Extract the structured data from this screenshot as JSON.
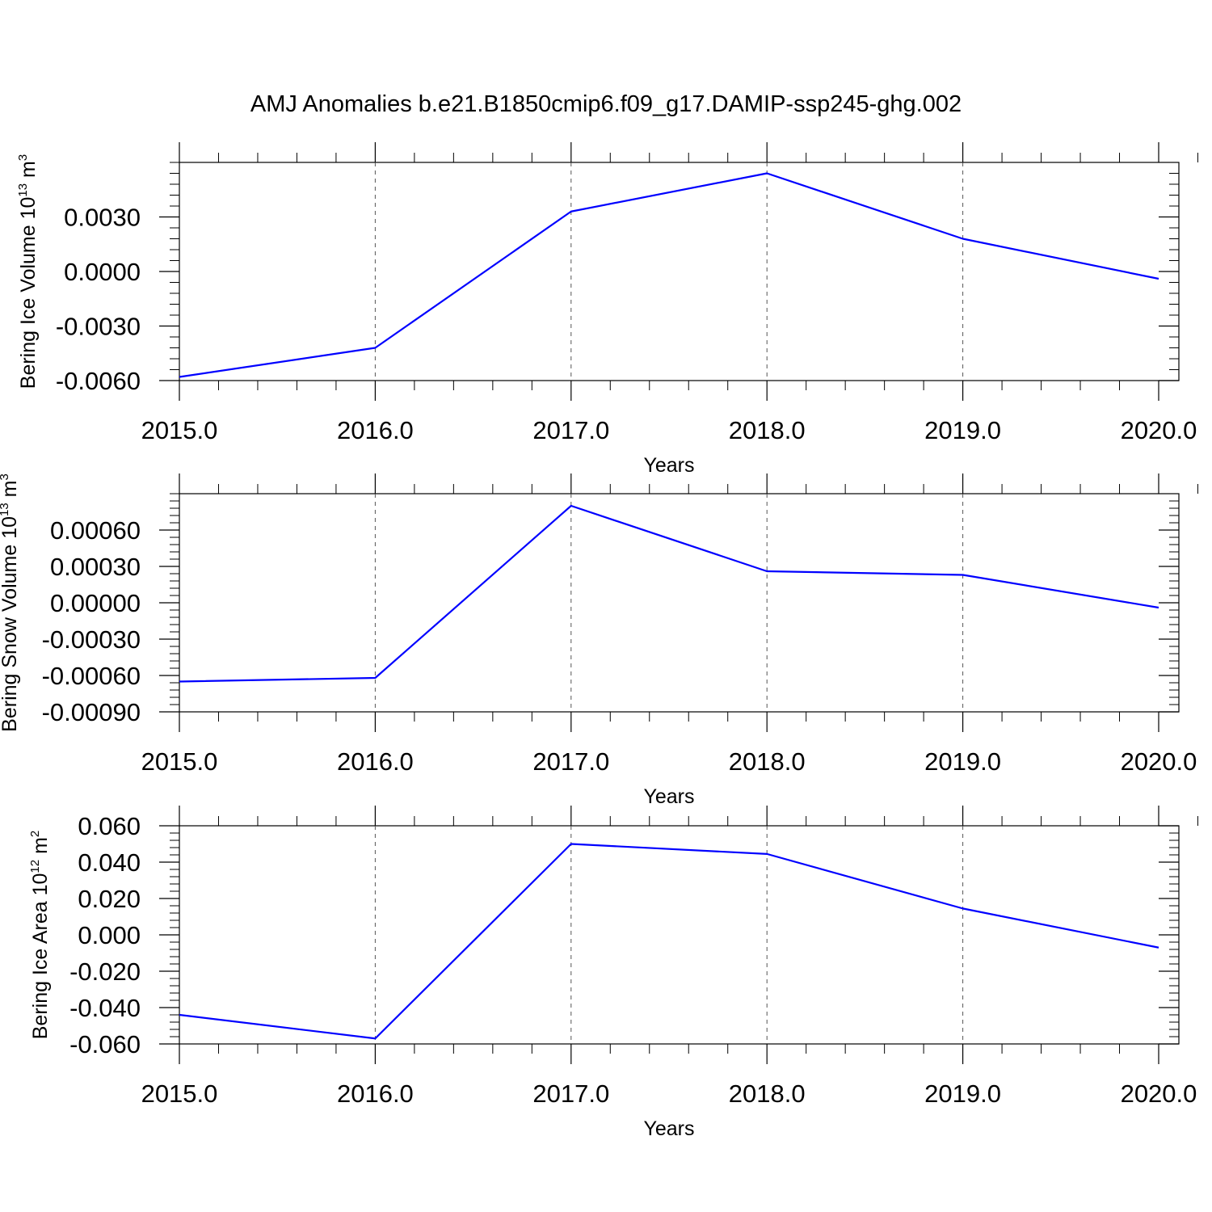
{
  "title": "AMJ Anomalies b.e21.B1850cmip6.f09_g17.DAMIP-ssp245-ghg.002",
  "colors": {
    "line": "#0000ff",
    "axis": "#000000",
    "grid": "#555555",
    "background": "#ffffff"
  },
  "chart_data": [
    {
      "type": "line",
      "xlabel": "Years",
      "ylabel": {
        "text": "Bering Ice Volume 10",
        "sup": "13",
        "unit": " m",
        "unit_sup": "3"
      },
      "x": [
        2015,
        2016,
        2017,
        2018,
        2019,
        2020
      ],
      "xticks": [
        "2015.0",
        "2016.0",
        "2017.0",
        "2018.0",
        "2019.0",
        "2020.0"
      ],
      "xlim": [
        2015,
        2020.1
      ],
      "yticks": [
        {
          "value": 0.003,
          "label": "0.0030"
        },
        {
          "value": 0.0,
          "label": "0.0000"
        },
        {
          "value": -0.003,
          "label": "-0.0030"
        },
        {
          "value": -0.006,
          "label": "-0.0060"
        }
      ],
      "ylim": [
        -0.006,
        0.006
      ],
      "grid": "vertical dashed at major x ticks",
      "series": [
        {
          "values": [
            -0.0058,
            -0.0042,
            0.0033,
            0.0054,
            0.0018,
            -0.0004
          ]
        }
      ]
    },
    {
      "type": "line",
      "xlabel": "Years",
      "ylabel": {
        "text": "Bering Snow Volume 10",
        "sup": "13",
        "unit": " m",
        "unit_sup": "3"
      },
      "x": [
        2015,
        2016,
        2017,
        2018,
        2019,
        2020
      ],
      "xticks": [
        "2015.0",
        "2016.0",
        "2017.0",
        "2018.0",
        "2019.0",
        "2020.0"
      ],
      "xlim": [
        2015,
        2020.1
      ],
      "yticks": [
        {
          "value": 0.0006,
          "label": "0.00060"
        },
        {
          "value": 0.0003,
          "label": "0.00030"
        },
        {
          "value": 0.0,
          "label": "0.00000"
        },
        {
          "value": -0.0003,
          "label": "-0.00030"
        },
        {
          "value": -0.0006,
          "label": "-0.00060"
        },
        {
          "value": -0.0009,
          "label": "-0.00090"
        }
      ],
      "ylim": [
        -0.0009,
        0.0009
      ],
      "grid": "vertical dashed at major x ticks",
      "series": [
        {
          "values": [
            -0.00065,
            -0.00062,
            0.0008,
            0.00026,
            0.00023,
            -4e-05
          ]
        }
      ]
    },
    {
      "type": "line",
      "xlabel": "Years",
      "ylabel": {
        "text": "Bering Ice Area 10",
        "sup": "12",
        "unit": " m",
        "unit_sup": "2"
      },
      "x": [
        2015,
        2016,
        2017,
        2018,
        2019,
        2020
      ],
      "xticks": [
        "2015.0",
        "2016.0",
        "2017.0",
        "2018.0",
        "2019.0",
        "2020.0"
      ],
      "xlim": [
        2015,
        2020.1
      ],
      "yticks": [
        {
          "value": 0.06,
          "label": "0.060"
        },
        {
          "value": 0.04,
          "label": "0.040"
        },
        {
          "value": 0.02,
          "label": "0.020"
        },
        {
          "value": 0.0,
          "label": "0.000"
        },
        {
          "value": -0.02,
          "label": "-0.020"
        },
        {
          "value": -0.04,
          "label": "-0.040"
        },
        {
          "value": -0.06,
          "label": "-0.060"
        }
      ],
      "ylim": [
        -0.06,
        0.06
      ],
      "grid": "vertical dashed at major x ticks",
      "series": [
        {
          "values": [
            -0.044,
            -0.057,
            0.05,
            0.0445,
            0.0145,
            -0.007
          ]
        }
      ]
    }
  ]
}
